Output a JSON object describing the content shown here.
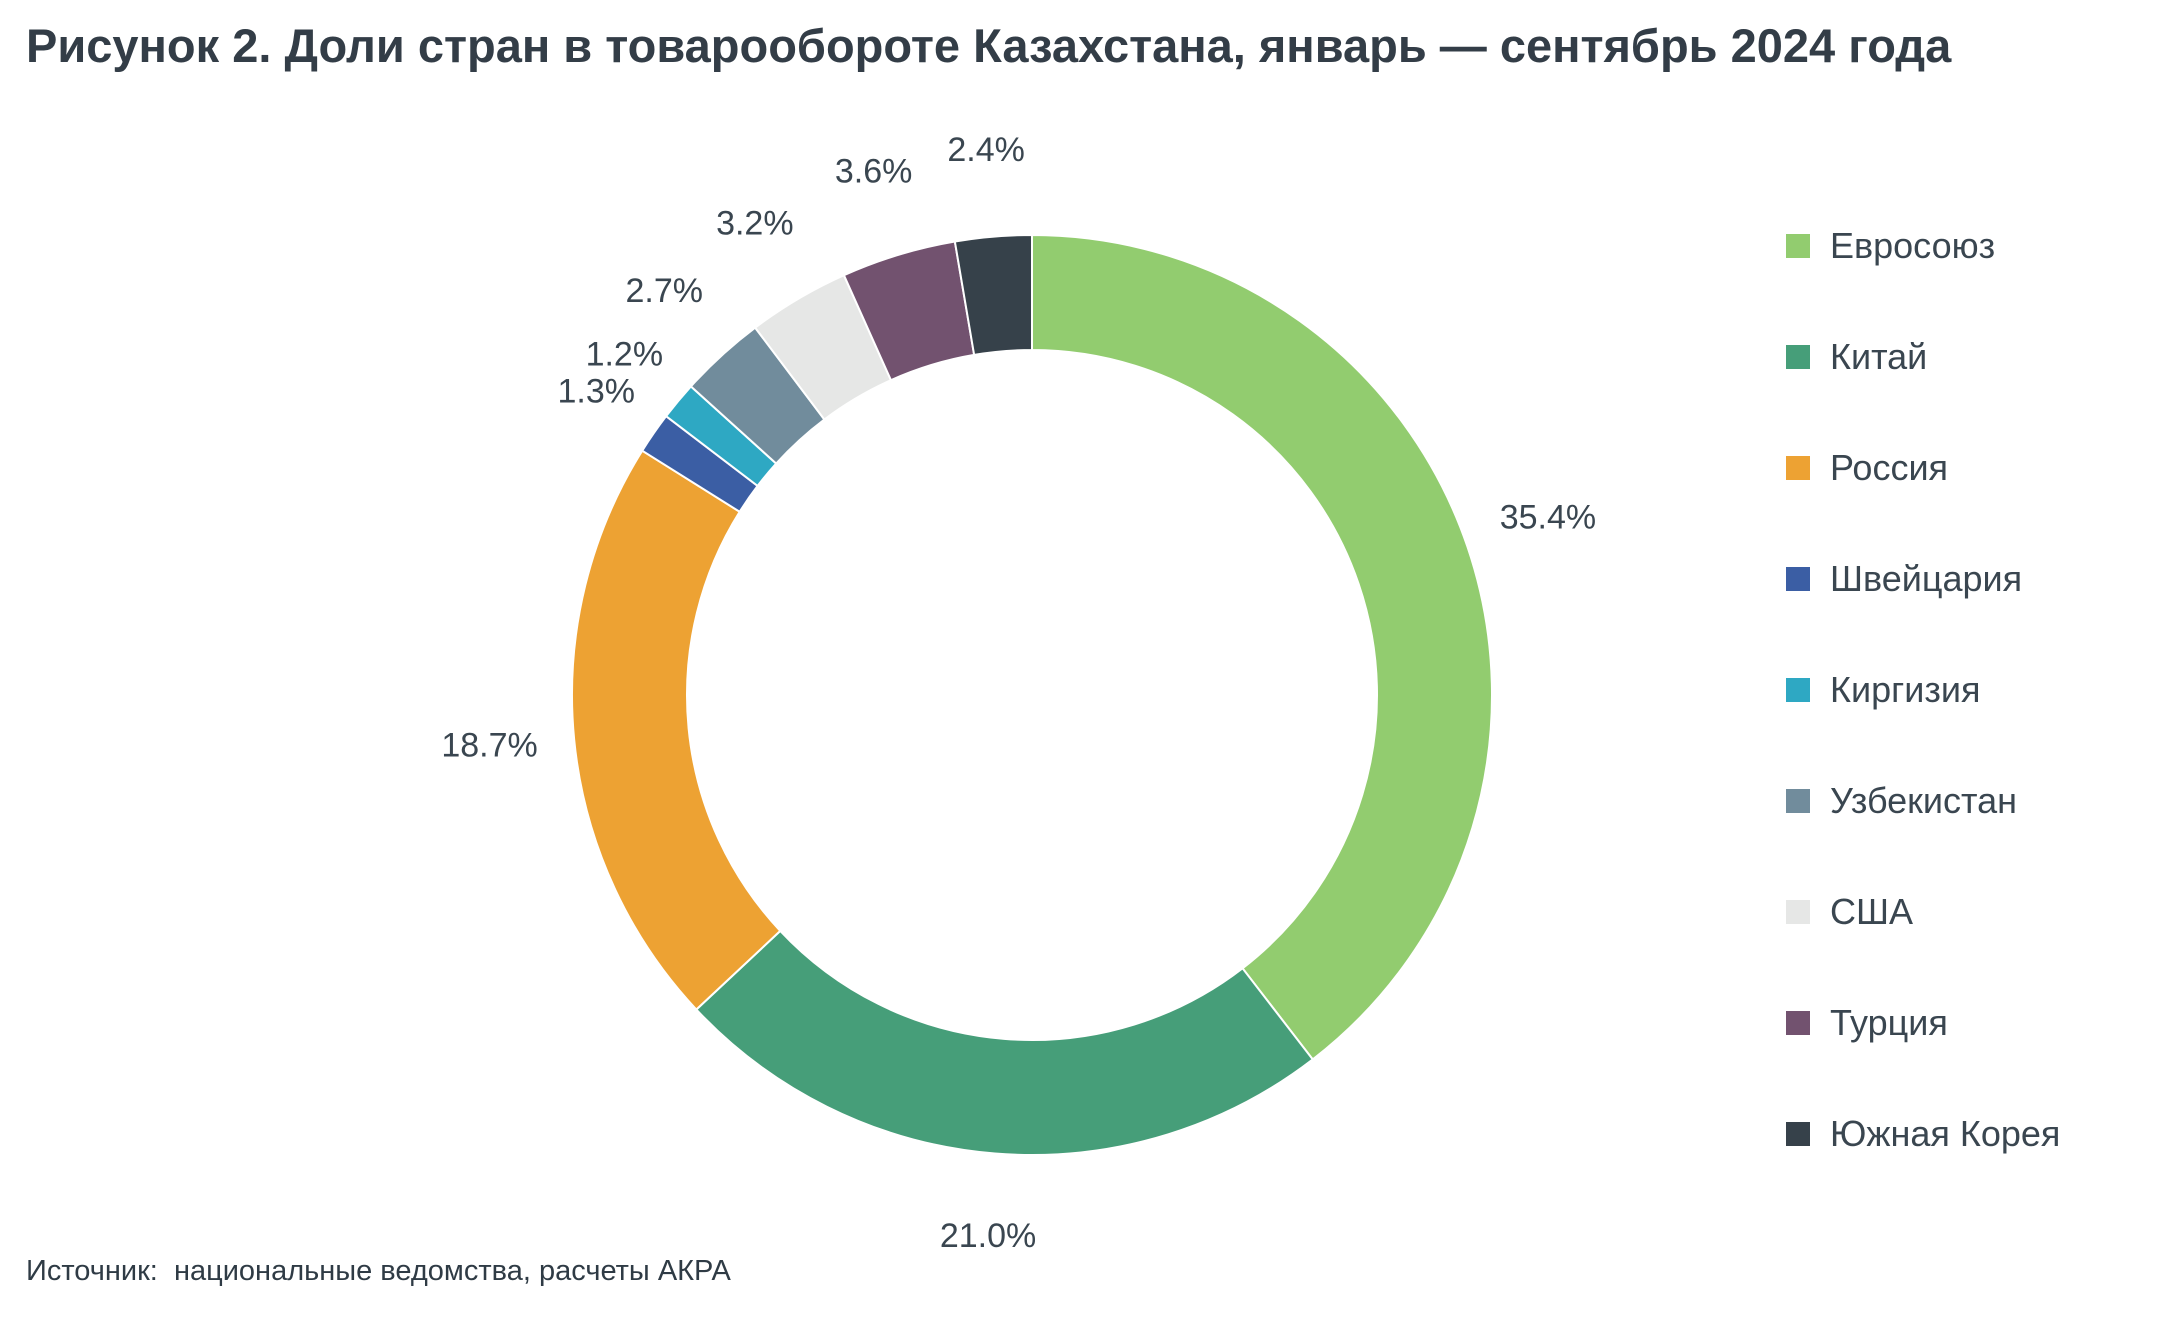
{
  "title": "Рисунок 2. Доли стран в товарообороте Казахстана, январь — сентябрь 2024 года",
  "source": "Источник:  национальные ведомства, расчеты АКРА",
  "chart_data": {
    "type": "pie",
    "donut": true,
    "legend_position": "right",
    "categories": [
      "Евросоюз",
      "Китай",
      "Россия",
      "Швейцария",
      "Киргизия",
      "Узбекистан",
      "США",
      "Турция",
      "Южная Корея"
    ],
    "values": [
      35.4,
      21.0,
      18.7,
      1.3,
      1.2,
      2.7,
      3.2,
      3.6,
      2.4
    ],
    "labels": [
      "35.4%",
      "21.0%",
      "18.7%",
      "1.3%",
      "1.2%",
      "2.7%",
      "3.2%",
      "3.6%",
      "2.4%"
    ],
    "colors": [
      "#92cc6f",
      "#469e79",
      "#eda233",
      "#3b5ea4",
      "#2ea8c3",
      "#718c9c",
      "#e6e7e6",
      "#72526f",
      "#36414a"
    ]
  }
}
